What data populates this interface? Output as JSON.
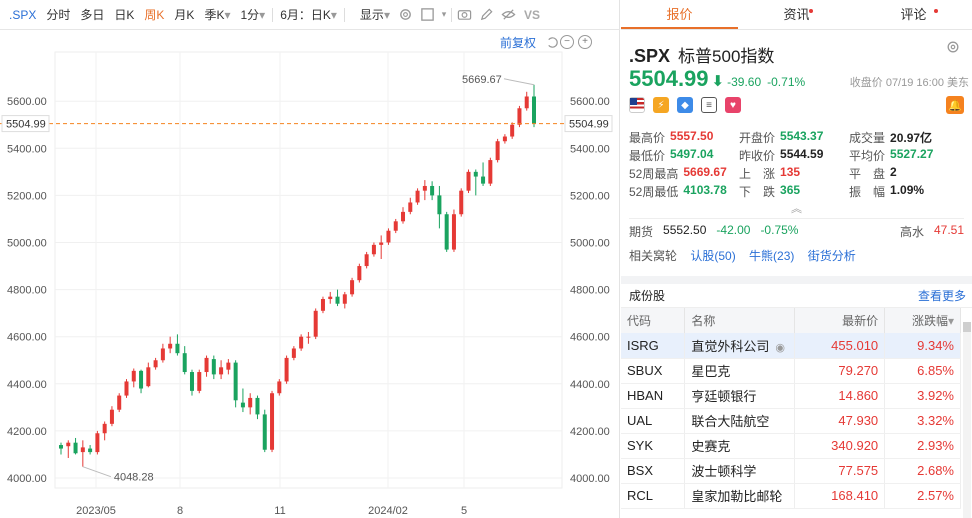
{
  "toolbar": {
    "symbol": ".SPX",
    "items": [
      "分时",
      "多日",
      "日K",
      "周K",
      "月K"
    ],
    "active": "周K",
    "season": "季K",
    "minute": "1分",
    "chev": "▾",
    "range": "6月：日K",
    "display": "显示"
  },
  "subbar": {
    "fuquan": "前复权"
  },
  "chart": {
    "max_label": "5669.67",
    "min_label": "4048.28",
    "current_label": "5504.99",
    "y_ticks": [
      "5600.00",
      "5400.00",
      "5200.00",
      "5000.00",
      "4800.00",
      "4600.00",
      "4400.00",
      "4200.00",
      "4000.00"
    ],
    "x_ticks": [
      "2023/05",
      "8",
      "11",
      "2024/02",
      "5"
    ],
    "colors": {
      "up": "#e53935",
      "down": "#1aa35f",
      "current_line": "#f5821f"
    }
  },
  "chart_data": {
    "type": "candlestick",
    "interval": "weekly",
    "ylim": [
      3950,
      5700
    ],
    "y_ticks": [
      4000,
      4200,
      4400,
      4600,
      4800,
      5000,
      5200,
      5400,
      5600
    ],
    "x_tick_labels": [
      "2023/05",
      "8",
      "11",
      "2024/02",
      "5"
    ],
    "current_price": 5504.99,
    "annotations": {
      "high": 5669.67,
      "low": 4048.28
    },
    "candles": [
      {
        "o": 4140,
        "h": 4150,
        "l": 4100,
        "c": 4125
      },
      {
        "o": 4135,
        "h": 4160,
        "l": 4085,
        "c": 4150
      },
      {
        "o": 4150,
        "h": 4170,
        "l": 4100,
        "c": 4105
      },
      {
        "o": 4110,
        "h": 4160,
        "l": 4048,
        "c": 4130
      },
      {
        "o": 4125,
        "h": 4140,
        "l": 4100,
        "c": 4110
      },
      {
        "o": 4110,
        "h": 4200,
        "l": 4100,
        "c": 4190
      },
      {
        "o": 4190,
        "h": 4240,
        "l": 4160,
        "c": 4230
      },
      {
        "o": 4230,
        "h": 4305,
        "l": 4220,
        "c": 4290
      },
      {
        "o": 4290,
        "h": 4360,
        "l": 4280,
        "c": 4350
      },
      {
        "o": 4350,
        "h": 4420,
        "l": 4340,
        "c": 4410
      },
      {
        "o": 4410,
        "h": 4465,
        "l": 4385,
        "c": 4455
      },
      {
        "o": 4455,
        "h": 4460,
        "l": 4360,
        "c": 4380
      },
      {
        "o": 4390,
        "h": 4490,
        "l": 4385,
        "c": 4470
      },
      {
        "o": 4470,
        "h": 4510,
        "l": 4460,
        "c": 4500
      },
      {
        "o": 4500,
        "h": 4570,
        "l": 4490,
        "c": 4550
      },
      {
        "o": 4550,
        "h": 4600,
        "l": 4530,
        "c": 4570
      },
      {
        "o": 4570,
        "h": 4610,
        "l": 4520,
        "c": 4530
      },
      {
        "o": 4530,
        "h": 4560,
        "l": 4440,
        "c": 4450
      },
      {
        "o": 4450,
        "h": 4460,
        "l": 4350,
        "c": 4370
      },
      {
        "o": 4370,
        "h": 4460,
        "l": 4360,
        "c": 4450
      },
      {
        "o": 4450,
        "h": 4520,
        "l": 4430,
        "c": 4510
      },
      {
        "o": 4505,
        "h": 4520,
        "l": 4420,
        "c": 4440
      },
      {
        "o": 4440,
        "h": 4500,
        "l": 4420,
        "c": 4470
      },
      {
        "o": 4460,
        "h": 4505,
        "l": 4440,
        "c": 4490
      },
      {
        "o": 4490,
        "h": 4500,
        "l": 4300,
        "c": 4330
      },
      {
        "o": 4320,
        "h": 4380,
        "l": 4280,
        "c": 4300
      },
      {
        "o": 4300,
        "h": 4360,
        "l": 4270,
        "c": 4340
      },
      {
        "o": 4340,
        "h": 4350,
        "l": 4250,
        "c": 4270
      },
      {
        "o": 4270,
        "h": 4290,
        "l": 4110,
        "c": 4120
      },
      {
        "o": 4120,
        "h": 4370,
        "l": 4110,
        "c": 4360
      },
      {
        "o": 4360,
        "h": 4420,
        "l": 4350,
        "c": 4410
      },
      {
        "o": 4410,
        "h": 4520,
        "l": 4400,
        "c": 4510
      },
      {
        "o": 4510,
        "h": 4560,
        "l": 4500,
        "c": 4550
      },
      {
        "o": 4550,
        "h": 4610,
        "l": 4540,
        "c": 4600
      },
      {
        "o": 4600,
        "h": 4620,
        "l": 4570,
        "c": 4600
      },
      {
        "o": 4600,
        "h": 4720,
        "l": 4590,
        "c": 4710
      },
      {
        "o": 4710,
        "h": 4770,
        "l": 4700,
        "c": 4760
      },
      {
        "o": 4760,
        "h": 4790,
        "l": 4740,
        "c": 4770
      },
      {
        "o": 4770,
        "h": 4800,
        "l": 4730,
        "c": 4740
      },
      {
        "o": 4740,
        "h": 4790,
        "l": 4720,
        "c": 4780
      },
      {
        "o": 4780,
        "h": 4850,
        "l": 4770,
        "c": 4840
      },
      {
        "o": 4840,
        "h": 4910,
        "l": 4830,
        "c": 4900
      },
      {
        "o": 4900,
        "h": 4960,
        "l": 4890,
        "c": 4950
      },
      {
        "o": 4950,
        "h": 5000,
        "l": 4940,
        "c": 4990
      },
      {
        "o": 4990,
        "h": 5030,
        "l": 4930,
        "c": 5000
      },
      {
        "o": 5000,
        "h": 5060,
        "l": 4990,
        "c": 5050
      },
      {
        "o": 5050,
        "h": 5100,
        "l": 5040,
        "c": 5090
      },
      {
        "o": 5090,
        "h": 5150,
        "l": 5080,
        "c": 5130
      },
      {
        "o": 5130,
        "h": 5190,
        "l": 5120,
        "c": 5170
      },
      {
        "o": 5170,
        "h": 5230,
        "l": 5160,
        "c": 5220
      },
      {
        "o": 5220,
        "h": 5265,
        "l": 5180,
        "c": 5240
      },
      {
        "o": 5240,
        "h": 5260,
        "l": 5180,
        "c": 5200
      },
      {
        "o": 5200,
        "h": 5240,
        "l": 5060,
        "c": 5120
      },
      {
        "o": 5120,
        "h": 5130,
        "l": 4960,
        "c": 4970
      },
      {
        "o": 4970,
        "h": 5140,
        "l": 4960,
        "c": 5120
      },
      {
        "o": 5120,
        "h": 5230,
        "l": 5110,
        "c": 5220
      },
      {
        "o": 5220,
        "h": 5310,
        "l": 5210,
        "c": 5300
      },
      {
        "o": 5300,
        "h": 5310,
        "l": 5200,
        "c": 5280
      },
      {
        "o": 5280,
        "h": 5340,
        "l": 5240,
        "c": 5250
      },
      {
        "o": 5250,
        "h": 5360,
        "l": 5240,
        "c": 5350
      },
      {
        "o": 5350,
        "h": 5440,
        "l": 5340,
        "c": 5430
      },
      {
        "o": 5430,
        "h": 5460,
        "l": 5420,
        "c": 5450
      },
      {
        "o": 5450,
        "h": 5510,
        "l": 5440,
        "c": 5500
      },
      {
        "o": 5500,
        "h": 5580,
        "l": 5490,
        "c": 5570
      },
      {
        "o": 5570,
        "h": 5640,
        "l": 5560,
        "c": 5620
      },
      {
        "o": 5620,
        "h": 5669.67,
        "l": 5490,
        "c": 5505
      }
    ]
  },
  "tabs": [
    "报价",
    "资讯",
    "评论"
  ],
  "quote": {
    "symbol": ".SPX",
    "name": "标普500指数",
    "price": "5504.99",
    "arrow": "⬇",
    "change": "-39.60",
    "change_pct": "-0.71%",
    "close_time": "收盘价 07/19 16:00 美东",
    "rows": [
      [
        {
          "l": "最高价",
          "v": "5557.50",
          "c": "red"
        },
        {
          "l": "开盘价",
          "v": "5543.37",
          "c": "green"
        },
        {
          "l": "成交量",
          "v": "20.97亿",
          "c": "dark"
        }
      ],
      [
        {
          "l": "最低价",
          "v": "5497.04",
          "c": "green"
        },
        {
          "l": "昨收价",
          "v": "5544.59",
          "c": "dark"
        },
        {
          "l": "平均价",
          "v": "5527.27",
          "c": "green"
        }
      ],
      [
        {
          "l": "52周最高",
          "v": "5669.67",
          "c": "red"
        },
        {
          "l": "上　涨",
          "v": "135",
          "c": "red"
        },
        {
          "l": "平　盘",
          "v": "2",
          "c": "dark"
        }
      ],
      [
        {
          "l": "52周最低",
          "v": "4103.78",
          "c": "green"
        },
        {
          "l": "下　跌",
          "v": "365",
          "c": "green"
        },
        {
          "l": "振　幅",
          "v": "1.09%",
          "c": "dark"
        }
      ]
    ],
    "expand": "︽",
    "futures": {
      "label": "期货",
      "price": "5552.50",
      "chg": "-42.00",
      "pct": "-0.75%",
      "water_label": "高水",
      "water": "47.51"
    },
    "related": {
      "label": "相关窝轮",
      "links": [
        "认股(50)",
        "牛熊(23)",
        "街货分析"
      ]
    }
  },
  "constituents": {
    "title": "成份股",
    "see_more": "查看更多",
    "headers": [
      "代码",
      "名称",
      "最新价",
      "涨跌幅"
    ],
    "sort_arrow": "▾",
    "rows": [
      [
        "ISRG",
        "直觉外科公司",
        "455.010",
        "9.34%"
      ],
      [
        "SBUX",
        "星巴克",
        "79.270",
        "6.85%"
      ],
      [
        "HBAN",
        "亨廷顿银行",
        "14.860",
        "3.92%"
      ],
      [
        "UAL",
        "联合大陆航空",
        "47.930",
        "3.32%"
      ],
      [
        "SYK",
        "史赛克",
        "340.920",
        "2.93%"
      ],
      [
        "BSX",
        "波士顿科学",
        "77.575",
        "2.68%"
      ],
      [
        "RCL",
        "皇家加勒比邮轮",
        "168.410",
        "2.57%"
      ]
    ]
  }
}
